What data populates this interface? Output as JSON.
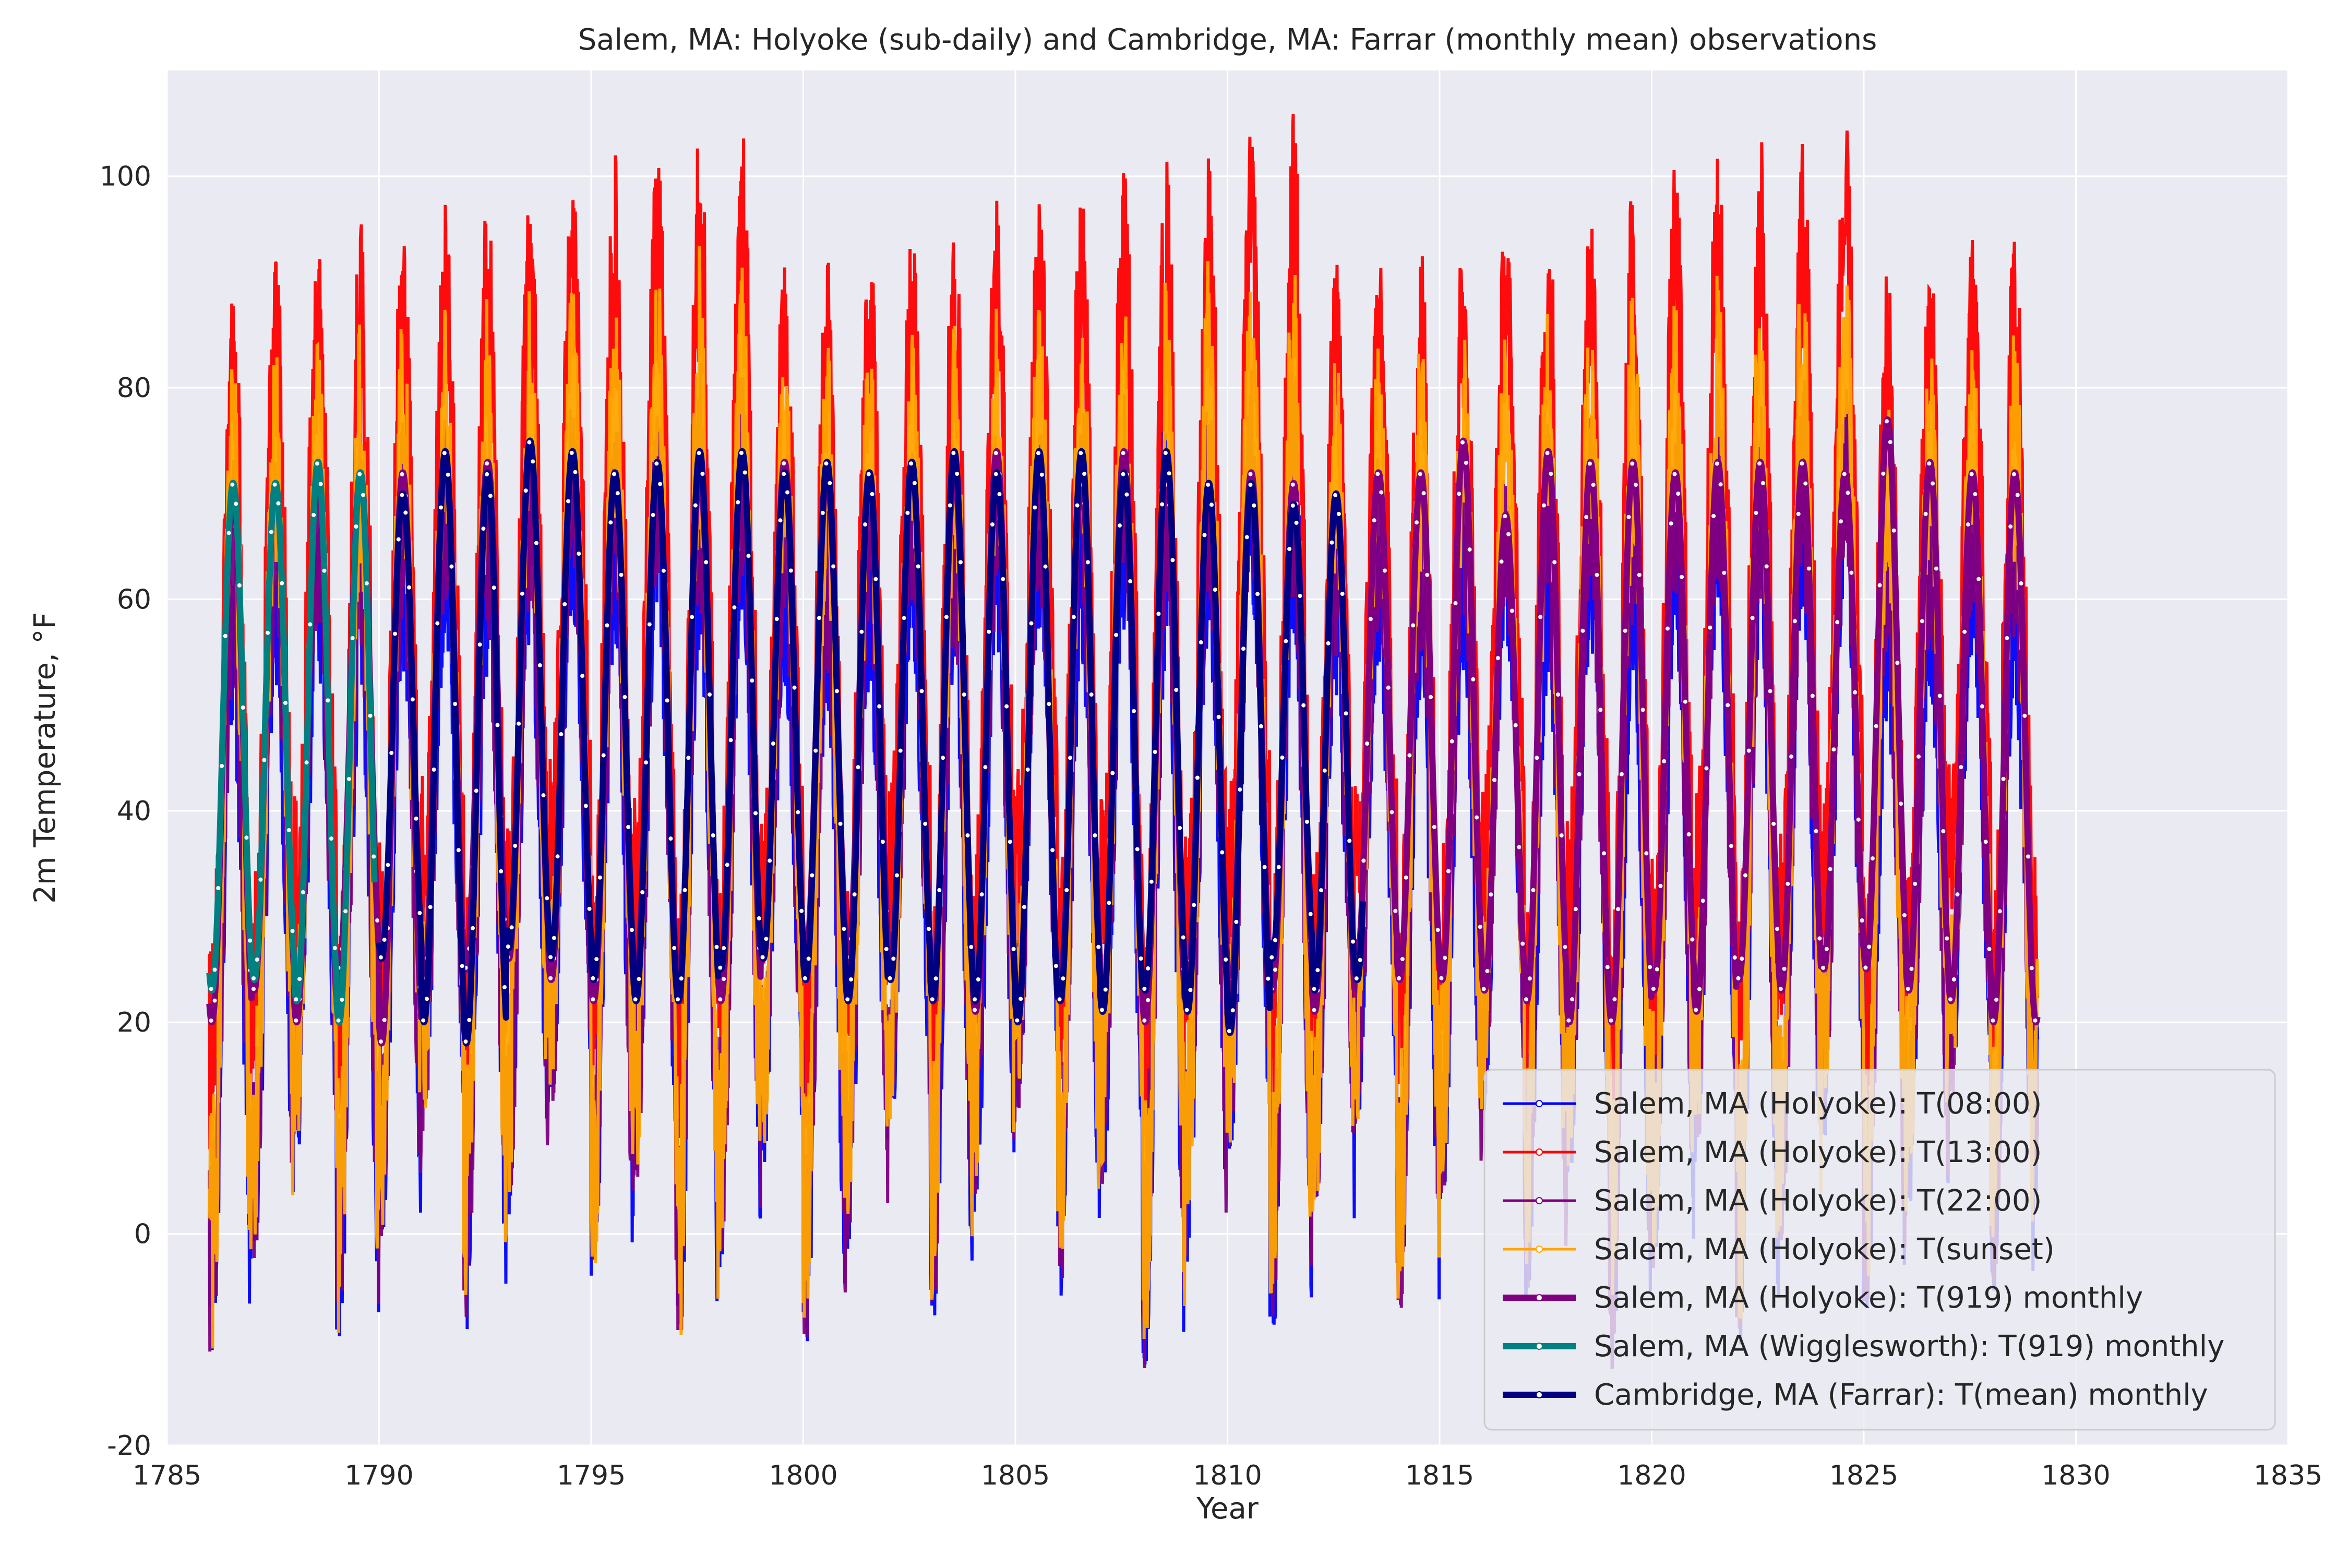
{
  "chart_data": {
    "type": "line",
    "title": "Salem, MA: Holyoke (sub-daily) and Cambridge, MA: Farrar (monthly mean) observations",
    "xlabel": "Year",
    "ylabel": "2m Temperature, °F",
    "xlim": [
      1785,
      1835
    ],
    "ylim": [
      -20,
      110
    ],
    "x_ticks": [
      1785,
      1790,
      1795,
      1800,
      1805,
      1810,
      1815,
      1820,
      1825,
      1830,
      1835
    ],
    "y_ticks": [
      -20,
      0,
      20,
      40,
      60,
      80,
      100
    ],
    "grid": true,
    "legend_position": "lower right",
    "series": [
      {
        "name": "Salem, MA (Holyoke): T(08:00)",
        "color": "#0000ff",
        "style": "sub-daily",
        "x_range": [
          1786.0,
          1829.1
        ],
        "annual_range_low": [
          -11,
          14
        ],
        "annual_range_high": [
          64,
          76
        ],
        "mean_offset": -3
      },
      {
        "name": "Salem, MA (Holyoke): T(13:00)",
        "color": "#ff0000",
        "style": "sub-daily",
        "x_range": [
          1786.0,
          1829.1
        ],
        "annual_range_low": [
          10,
          30
        ],
        "annual_range_high": [
          89,
          102
        ],
        "mean_offset": 8
      },
      {
        "name": "Salem, MA (Holyoke): T(22:00)",
        "color": "#800080",
        "style": "sub-daily",
        "x_range": [
          1786.0,
          1829.1
        ],
        "annual_range_low": [
          -9,
          14
        ],
        "annual_range_high": [
          70,
          80
        ],
        "mean_offset": -2
      },
      {
        "name": "Salem, MA (Holyoke): T(sunset)",
        "color": "#ffa500",
        "style": "sub-daily",
        "x_range": [
          1786.0,
          1829.1
        ],
        "annual_range_low": [
          -8,
          16
        ],
        "annual_range_high": [
          80,
          90
        ],
        "mean_offset": 4
      },
      {
        "name": "Salem, MA (Holyoke): T(919) monthly",
        "color": "#800080",
        "style": "monthly",
        "x_range": [
          1786.0,
          1829.1
        ],
        "winter_minima": [
          20,
          23,
          20,
          25,
          18,
          24,
          25,
          26,
          24,
          22,
          24,
          23,
          22,
          26,
          26,
          26,
          25,
          23,
          21,
          20,
          24,
          21,
          20,
          24,
          22,
          23,
          21,
          26,
          24,
          24,
          23,
          22,
          20,
          20,
          23,
          21,
          24,
          23,
          25,
          25,
          23,
          22,
          20
        ],
        "summer_maxima": [
          70,
          71,
          73,
          72,
          72,
          74,
          73,
          74,
          74,
          72,
          73,
          72,
          73,
          73,
          72,
          72,
          73,
          72,
          74,
          72,
          71,
          74,
          71,
          69,
          72,
          71,
          70,
          72,
          72,
          75,
          68,
          74,
          73,
          73,
          72,
          73,
          73,
          73,
          72,
          77,
          73,
          72,
          72
        ]
      },
      {
        "name": "Salem, MA (Wigglesworth): T(919) monthly",
        "color": "#008080",
        "style": "monthly",
        "x_range": [
          1786.0,
          1789.9
        ],
        "winter_minima": [
          23,
          24,
          22,
          20
        ],
        "summer_maxima": [
          71,
          71,
          73,
          72
        ]
      },
      {
        "name": "Cambridge, MA (Farrar): T(mean) monthly",
        "color": "#000080",
        "style": "monthly",
        "x_range": [
          1790.0,
          1813.2
        ],
        "winter_minima": [
          26,
          20,
          18,
          27,
          26,
          24,
          22,
          22,
          25,
          26,
          24,
          22,
          24,
          22,
          22,
          20,
          22,
          21,
          23,
          21,
          19,
          26,
          23,
          24
        ],
        "summer_maxima": [
          70,
          74,
          72,
          75,
          74,
          72,
          73,
          74,
          74,
          72,
          73,
          72,
          73,
          74,
          72,
          74,
          74,
          72,
          74,
          71,
          71,
          69,
          70,
          70
        ]
      }
    ]
  }
}
